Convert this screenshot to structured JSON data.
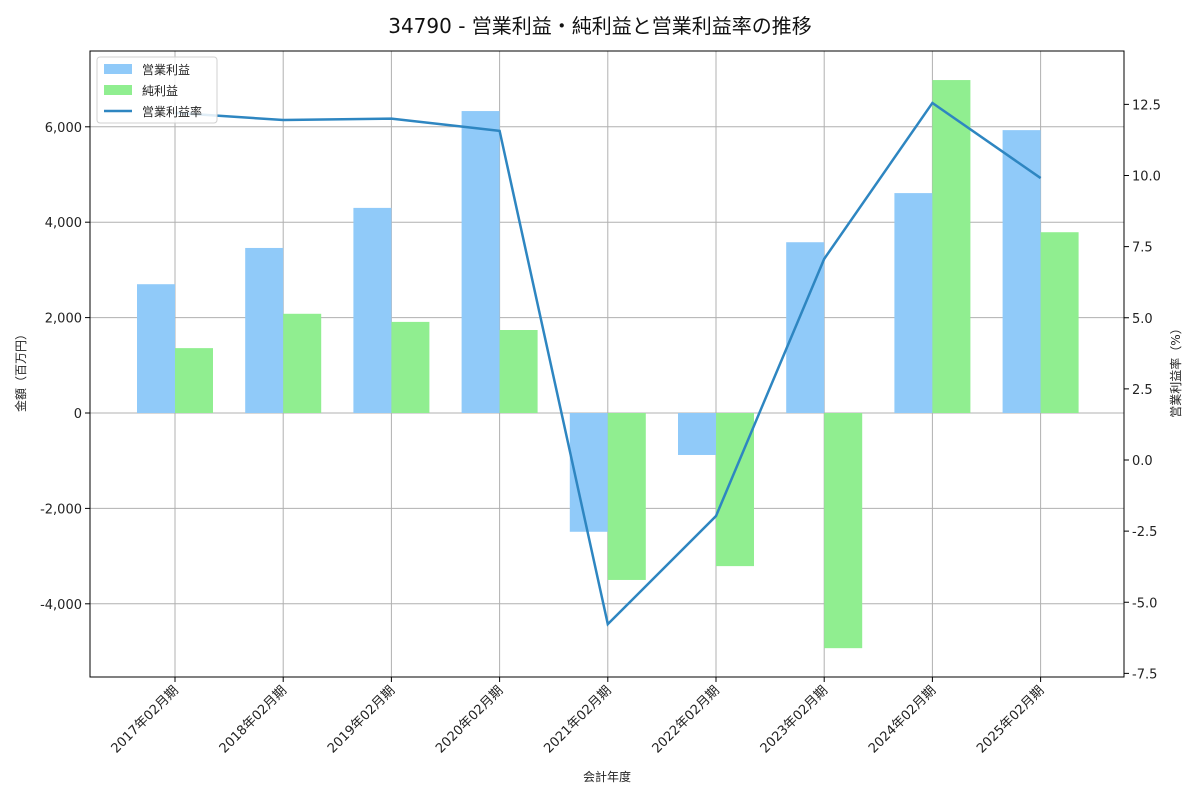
{
  "title": "34790 - 営業利益・純利益と営業利益率の推移",
  "colors": {
    "operating_profit": "#90caf9",
    "net_profit": "#90ee90",
    "operating_margin": "#2e86c1",
    "grid": "#b0b0b0",
    "axis": "#000000"
  },
  "legend": [
    {
      "label": "営業利益",
      "type": "bar",
      "color": "#90caf9"
    },
    {
      "label": "純利益",
      "type": "bar",
      "color": "#90ee90"
    },
    {
      "label": "営業利益率",
      "type": "line",
      "color": "#2e86c1"
    }
  ],
  "chart_data": {
    "type": "bar",
    "title": "34790 - 営業利益・純利益と営業利益率の推移",
    "xlabel": "会計年度",
    "ylabel": "金額（百万円）",
    "y2label": "営業利益率（%）",
    "categories": [
      "2017年02月期",
      "2018年02月期",
      "2019年02月期",
      "2020年02月期",
      "2021年02月期",
      "2022年02月期",
      "2023年02月期",
      "2024年02月期",
      "2025年02月期"
    ],
    "series": [
      {
        "name": "営業利益",
        "type": "bar",
        "axis": "left",
        "values": [
          2700,
          3460,
          4300,
          6330,
          -2490,
          -880,
          3580,
          4610,
          5930
        ]
      },
      {
        "name": "純利益",
        "type": "bar",
        "axis": "left",
        "values": [
          1360,
          2080,
          1910,
          1740,
          -3500,
          -3210,
          -4930,
          6980,
          3790
        ]
      },
      {
        "name": "営業利益率",
        "type": "line",
        "axis": "right",
        "values": [
          12.2,
          11.95,
          12.0,
          11.57,
          -5.77,
          -1.97,
          7.07,
          12.55,
          9.91
        ]
      }
    ],
    "ylim": [
      -5570,
      7530
    ],
    "y2lim": [
      -7.6,
      14.5
    ],
    "yticks": [
      -4000,
      -2000,
      0,
      2000,
      4000,
      6000
    ],
    "ytick_labels": [
      "-4,000",
      "-2,000",
      "0",
      "2,000",
      "4,000",
      "6,000"
    ],
    "y2ticks": [
      -7.5,
      -5.0,
      -2.5,
      0.0,
      2.5,
      5.0,
      7.5,
      10.0,
      12.5
    ],
    "y2tick_labels": [
      "-7.5",
      "-5.0",
      "-2.5",
      "0.0",
      "2.5",
      "5.0",
      "7.5",
      "10.0",
      "12.5"
    ],
    "grid": true,
    "legend_position": "upper left"
  }
}
